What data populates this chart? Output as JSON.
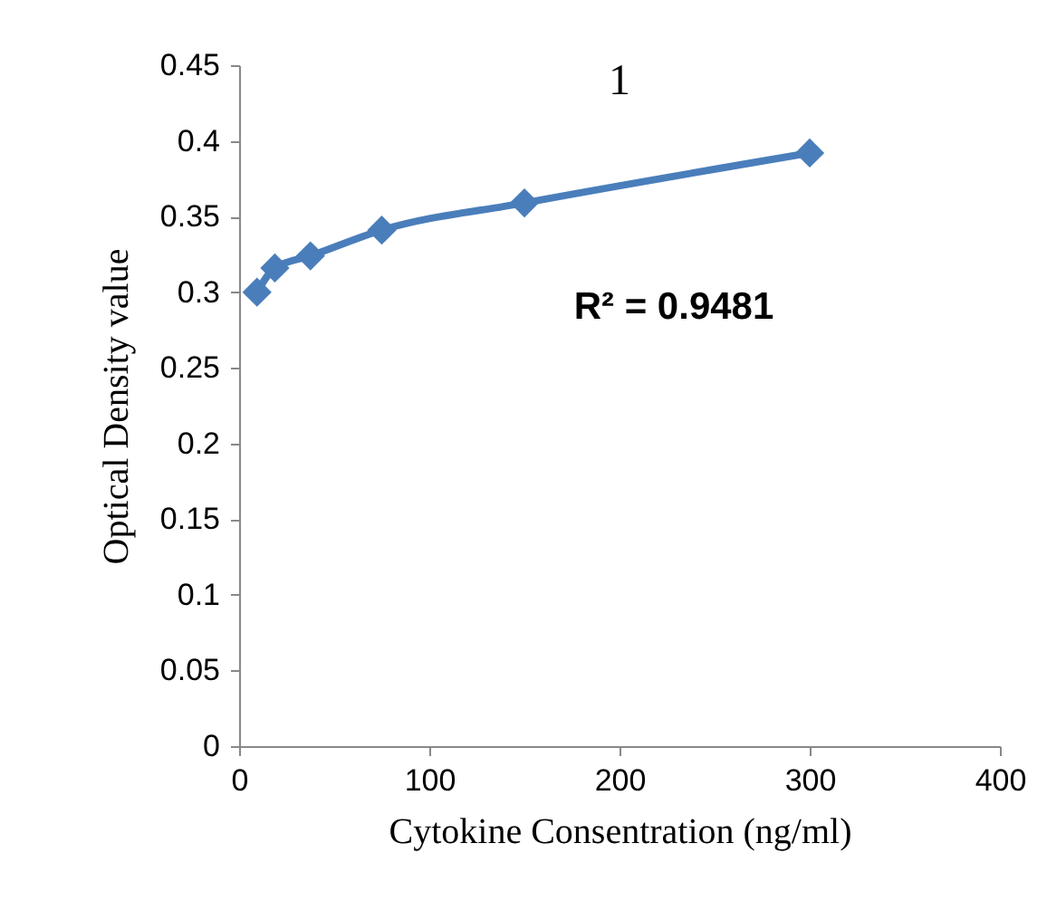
{
  "chart_data": {
    "type": "line",
    "title": "1",
    "xlabel": "Cytokine Consentration (ng/ml)",
    "ylabel": "Optical Density value",
    "x": [
      9.4,
      18.8,
      37.5,
      75,
      150,
      300
    ],
    "series": [
      {
        "color": "#4a7ebb",
        "values": [
          0.3,
          0.316,
          0.324,
          0.341,
          0.359,
          0.392
        ]
      }
    ],
    "xlim": [
      0,
      400
    ],
    "xticks": [
      0,
      100,
      200,
      300,
      400
    ],
    "ylim": [
      0,
      0.45
    ],
    "yticks": [
      0,
      0.05,
      0.1,
      0.15,
      0.2,
      0.25,
      0.3,
      0.35,
      0.4,
      0.45
    ],
    "marker": "diamond",
    "line_style": "solid",
    "grid": false,
    "annotations": [
      "R² = 0.9481"
    ]
  }
}
